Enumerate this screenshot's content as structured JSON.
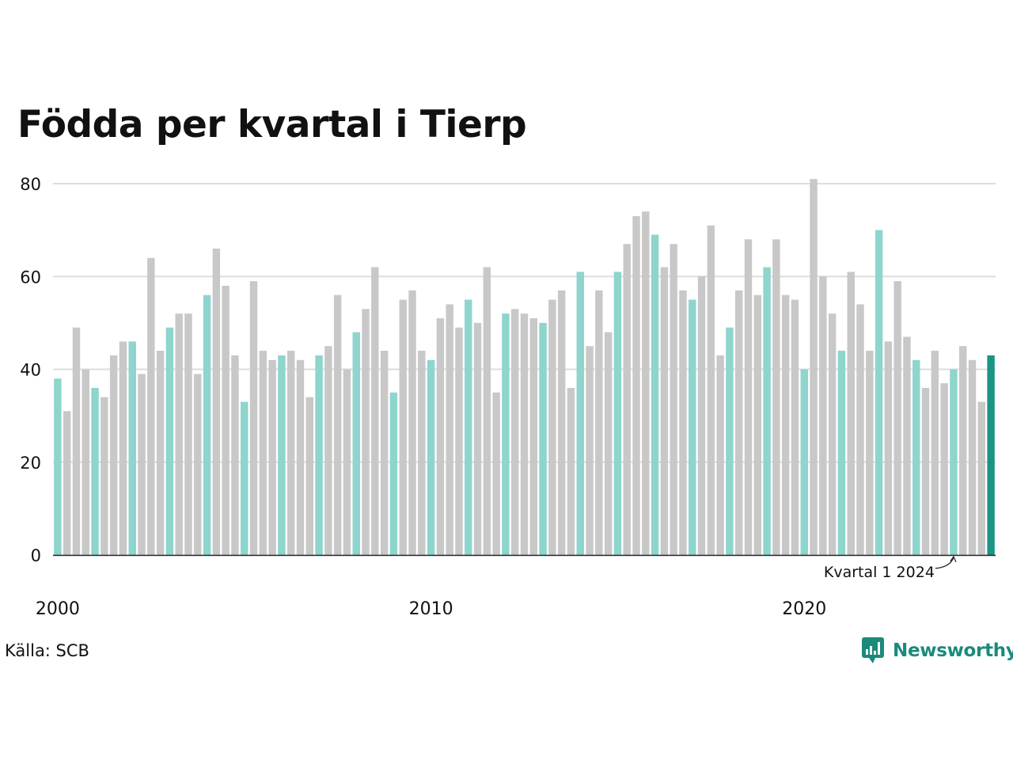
{
  "title": "Födda per kvartal i Tierp",
  "source": "Källa: SCB",
  "brand": "Newsworthy",
  "colors": {
    "q1": "#8dd5cd",
    "other": "#c8c8c8",
    "latest": "#1a9484",
    "grid": "#dddddd",
    "axis": "#222222",
    "brand": "#1a8a7c"
  },
  "chart_data": {
    "type": "bar",
    "title": "Födda per kvartal i Tierp",
    "x_start": "2000-Q1",
    "x_ticks": [
      "2000",
      "2010",
      "2020"
    ],
    "y_ticks": [
      0,
      20,
      40,
      60,
      80
    ],
    "ylim": [
      0,
      80
    ],
    "grid": true,
    "highlight": "Kvartal 1 highlighted in turquoise; latest quarter in dark teal",
    "annotation": "Kvartal 1 2024",
    "values": [
      38,
      31,
      49,
      40,
      36,
      34,
      43,
      46,
      46,
      39,
      64,
      44,
      49,
      52,
      52,
      39,
      56,
      66,
      58,
      43,
      33,
      59,
      44,
      42,
      43,
      44,
      42,
      34,
      43,
      45,
      56,
      40,
      48,
      53,
      62,
      44,
      35,
      55,
      57,
      44,
      42,
      51,
      54,
      49,
      55,
      50,
      62,
      35,
      52,
      53,
      52,
      51,
      50,
      55,
      57,
      36,
      61,
      45,
      57,
      48,
      61,
      67,
      73,
      74,
      69,
      62,
      67,
      57,
      55,
      60,
      71,
      43,
      49,
      57,
      68,
      56,
      62,
      68,
      56,
      55,
      40,
      81,
      60,
      52,
      44,
      61,
      54,
      44,
      70,
      46,
      59,
      47,
      42,
      36,
      44,
      37,
      40,
      45,
      42,
      33,
      43
    ]
  }
}
